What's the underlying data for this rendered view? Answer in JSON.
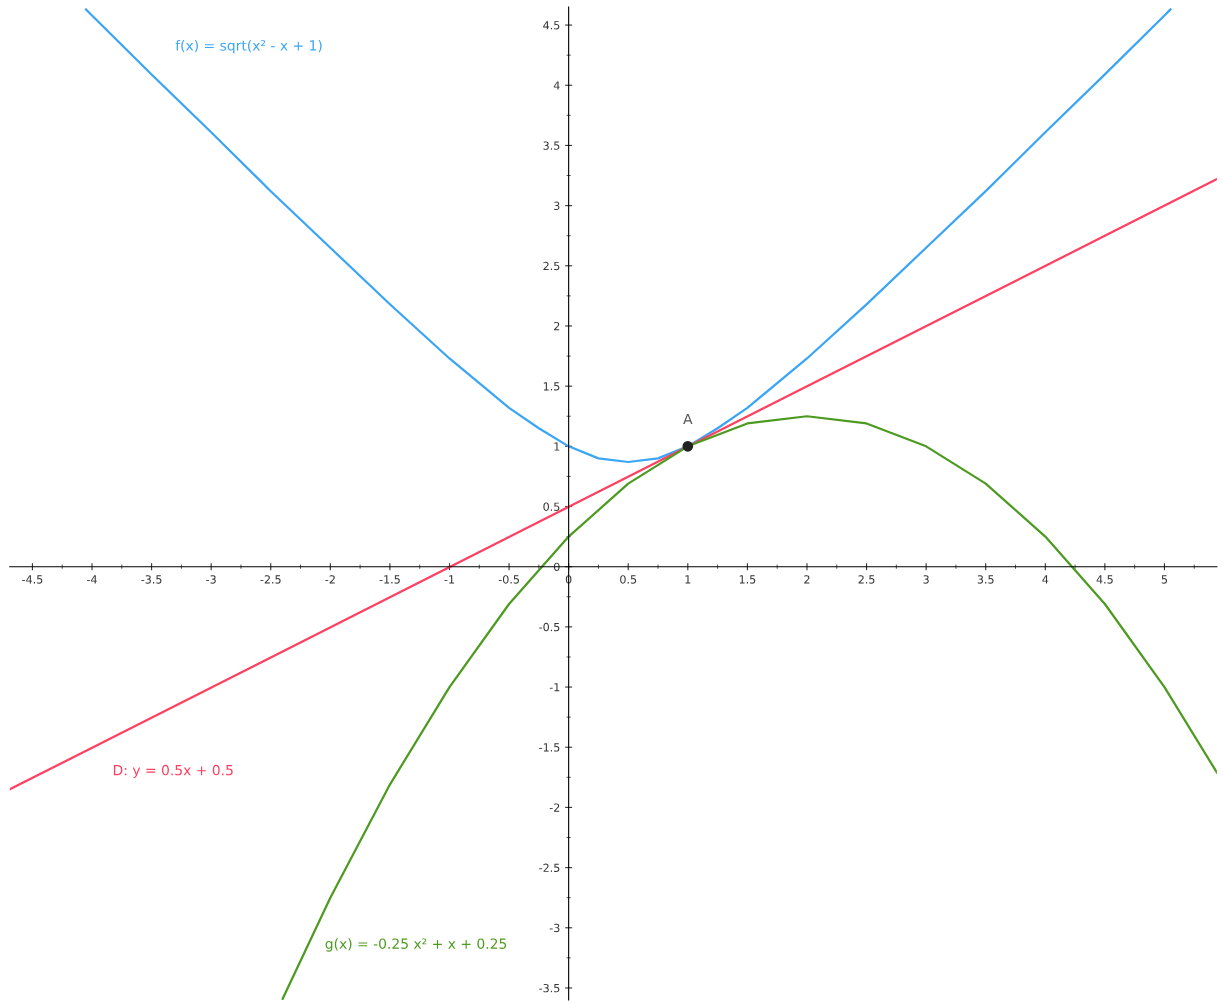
{
  "chart_data": {
    "type": "line",
    "xlim": [
      -4.69,
      5.44
    ],
    "ylim": [
      -3.6,
      4.65
    ],
    "xticks": [
      -4.5,
      -4,
      -3.5,
      -3,
      -2.5,
      -2,
      -1.5,
      -1,
      -0.5,
      0,
      0.5,
      1,
      1.5,
      2,
      2.5,
      3,
      3.5,
      4,
      4.5,
      5
    ],
    "yticks": [
      -3.5,
      -3,
      -2.5,
      -2,
      -1.5,
      -1,
      -0.5,
      0,
      0.5,
      1,
      1.5,
      2,
      2.5,
      3,
      3.5,
      4,
      4.5
    ],
    "grid": false,
    "legend": false,
    "marker": "none",
    "line_style": "solid",
    "series": [
      {
        "name": "f(x) = sqrt(x² - x + 1)",
        "color": "#3aa5f5",
        "x": [
          -4.05,
          -4,
          -3.5,
          -3,
          -2.5,
          -2,
          -1.5,
          -1,
          -0.5,
          -0.25,
          0,
          0.25,
          0.5,
          0.75,
          1,
          1.25,
          1.5,
          2,
          2.5,
          3,
          3.5,
          4,
          4.5,
          5,
          5.05
        ],
        "values": [
          4.63,
          4.58,
          4.09,
          3.61,
          3.12,
          2.65,
          2.18,
          1.73,
          1.32,
          1.15,
          1,
          0.9,
          0.87,
          0.9,
          1,
          1.15,
          1.32,
          1.73,
          2.18,
          2.65,
          3.12,
          3.61,
          4.09,
          4.58,
          4.63
        ]
      },
      {
        "name": "D: y = 0.5x + 0.5",
        "color": "#ff3f5f",
        "x": [
          -4.69,
          5.44
        ],
        "values": [
          -1.85,
          3.22
        ]
      },
      {
        "name": "g(x) = -0.25 x² + x + 0.25",
        "color": "#4c9a1f",
        "x": [
          -2.4,
          -2,
          -1.5,
          -1,
          -0.5,
          0,
          0.5,
          1,
          1.5,
          2,
          2.5,
          3,
          3.5,
          4,
          4.5,
          5,
          5.44
        ],
        "values": [
          -3.59,
          -2.75,
          -1.81,
          -1,
          -0.31,
          0.25,
          0.69,
          1,
          1.19,
          1.25,
          1.19,
          1,
          0.69,
          0.25,
          -0.31,
          -1,
          -1.71
        ]
      },
      {
        "type": "scatter",
        "name": "A",
        "color": "#222222",
        "marker": "circle",
        "x": [
          1
        ],
        "values": [
          1
        ]
      }
    ]
  }
}
